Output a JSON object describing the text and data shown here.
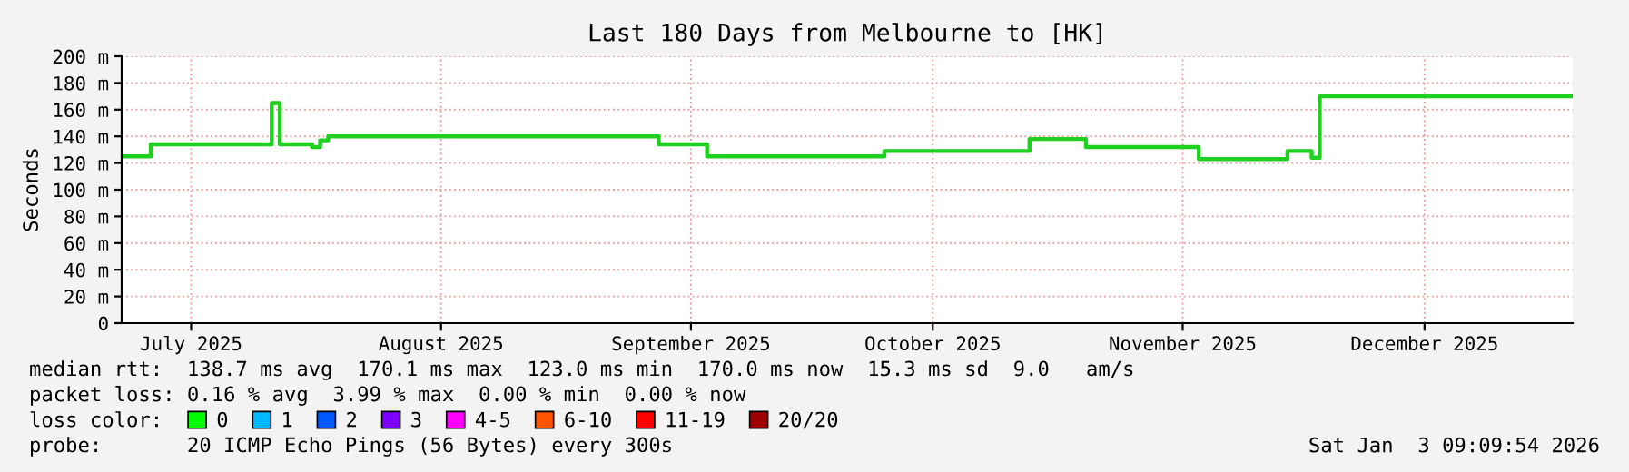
{
  "chart_data": {
    "type": "step",
    "title": "Last 180 Days from Melbourne to [HK]",
    "ylabel": "Seconds",
    "x": [
      "2025-07-07T09:09",
      "2025-07-11",
      "2025-07-22",
      "2025-07-26",
      "2025-07-27",
      "2025-07-31",
      "2025-08-01",
      "2025-08-02",
      "2025-09-12",
      "2025-09-18",
      "2025-10-10",
      "2025-10-28",
      "2025-11-04",
      "2025-11-18",
      "2025-11-29",
      "2025-12-02",
      "2025-12-03",
      "2026-01-03T09:09"
    ],
    "series": [
      {
        "color": "#20d020",
        "values": [
          125,
          134,
          134,
          165,
          134,
          132,
          137,
          140,
          134,
          125,
          129,
          138,
          132,
          123,
          129,
          124,
          170,
          170
        ]
      },
      {
        "name": "0",
        "color": "#00ff00",
        "values": [
          null,
          null,
          null,
          null,
          null,
          null,
          null,
          null,
          null,
          null,
          null,
          null,
          null,
          null,
          null,
          null,
          null,
          null
        ]
      },
      {
        "name": "1",
        "color": "#00b8ff",
        "values": [
          null,
          null,
          null,
          null,
          null,
          null,
          null,
          null,
          null,
          null,
          null,
          null,
          null,
          null,
          null,
          null,
          null,
          null
        ]
      },
      {
        "name": "2",
        "color": "#0059ff",
        "values": [
          null,
          null,
          null,
          null,
          null,
          null,
          null,
          null,
          null,
          null,
          null,
          null,
          null,
          null,
          null,
          null,
          null,
          null
        ]
      },
      {
        "name": "3",
        "color": "#7e00ff",
        "values": [
          null,
          null,
          null,
          null,
          null,
          null,
          null,
          null,
          null,
          null,
          null,
          null,
          null,
          null,
          null,
          null,
          null,
          null
        ]
      },
      {
        "name": "4-5",
        "color": "#ff00ff",
        "values": [
          null,
          null,
          null,
          null,
          null,
          null,
          null,
          null,
          null,
          null,
          null,
          null,
          null,
          null,
          null,
          null,
          null,
          null
        ]
      },
      {
        "name": "6-10",
        "color": "#ff5500",
        "values": [
          null,
          null,
          null,
          null,
          null,
          null,
          null,
          null,
          null,
          null,
          null,
          null,
          null,
          null,
          null,
          null,
          null,
          null
        ]
      },
      {
        "name": "11-19",
        "color": "#ff0000",
        "values": [
          null,
          null,
          null,
          null,
          null,
          null,
          null,
          null,
          null,
          null,
          null,
          null,
          null,
          null,
          null,
          null,
          null,
          null
        ]
      },
      {
        "name": "20/20",
        "color": "#a10000",
        "values": [
          null,
          null,
          null,
          null,
          null,
          null,
          null,
          null,
          null,
          null,
          null,
          null,
          null,
          null,
          null,
          null,
          null,
          null
        ]
      }
    ],
    "xlim": [
      "2025-07-07T09:09",
      "2026-01-03T09:09"
    ],
    "xticks": [
      {
        "value": "2025-07-16",
        "label": "July 2025"
      },
      {
        "value": "2025-08-16",
        "label": "August 2025"
      },
      {
        "value": "2025-09-16",
        "label": "September 2025"
      },
      {
        "value": "2025-10-16",
        "label": "October 2025"
      },
      {
        "value": "2025-11-16",
        "label": "November 2025"
      },
      {
        "value": "2025-12-16",
        "label": "December 2025"
      }
    ],
    "ylim": [
      0,
      200
    ],
    "yticks": [
      0,
      {
        "value": 20,
        "label": "20 m"
      },
      {
        "value": 40,
        "label": "40 m"
      },
      {
        "value": 60,
        "label": "60 m"
      },
      {
        "value": 80,
        "label": "80 m"
      },
      {
        "value": 100,
        "label": "100 m"
      },
      {
        "value": 120,
        "label": "120 m"
      },
      {
        "value": 140,
        "label": "140 m"
      },
      {
        "value": 160,
        "label": "160 m"
      },
      {
        "value": 180,
        "label": "180 m"
      },
      {
        "value": 200,
        "label": "200 m"
      }
    ],
    "grid": true,
    "legend": "bottom left",
    "marker": "none",
    "line_style": "solid",
    "annotations": [
      "median rtt:  138.7 ms avg  170.1 ms max  123.0 ms min  170.0 ms now  15.3 ms sd  9.0   am/s",
      "packet loss: 0.16 % avg  3.99 % max  0.00 % min  0.00 % now",
      "loss color:",
      "probe:       20 ICMP Echo Pings (56 Bytes) every 300s",
      "Sat Jan  3 09:09:54 2026"
    ]
  }
}
